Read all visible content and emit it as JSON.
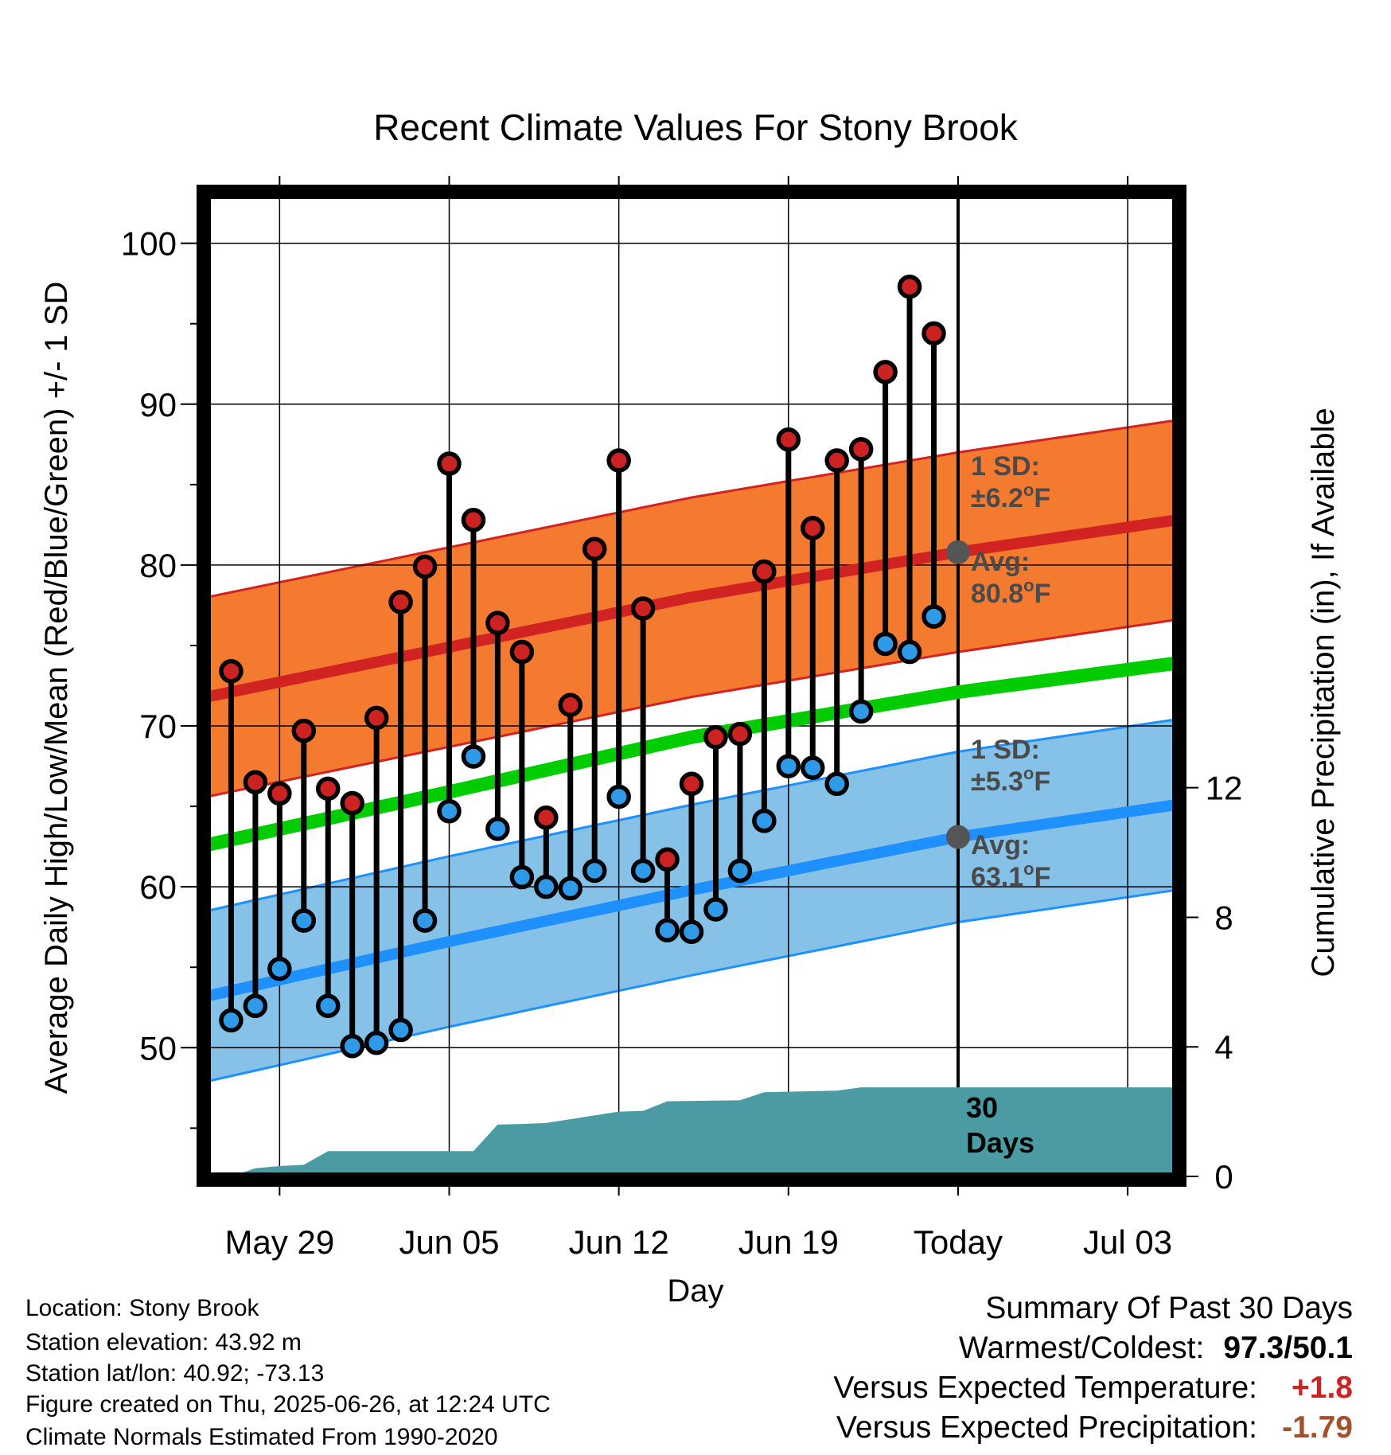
{
  "chart_data": {
    "type": "line",
    "title": "Recent Climate Values For Stony Brook",
    "xlabel": "Day",
    "ylabel": "Average Daily High/Low/Mean (Red/Blue/Green) +/- 1 SD",
    "y2label": "Cumulative Precipitation (in), If Available",
    "x_tick_labels": [
      "May 29",
      "Jun 05",
      "Jun 12",
      "Jun 19",
      "Today",
      "Jul 03"
    ],
    "x_tick_dates": [
      "2025-05-29",
      "2025-06-05",
      "2025-06-12",
      "2025-06-19",
      "2025-06-26",
      "2025-07-03"
    ],
    "x_range": [
      "2025-05-26",
      "2025-07-05"
    ],
    "today": "2025-06-26",
    "ylim": [
      42,
      103
    ],
    "y_ticks": [
      50,
      60,
      70,
      80,
      90,
      100
    ],
    "y2lim": [
      0,
      30.3
    ],
    "y2_ticks": [
      0,
      4,
      8,
      12
    ],
    "grid": true,
    "normals": {
      "dates": [
        "2025-05-26",
        "2025-06-05",
        "2025-06-15",
        "2025-06-26",
        "2025-07-05"
      ],
      "high_avg": [
        71.8,
        74.9,
        78.0,
        80.8,
        82.8
      ],
      "high_sd": 6.2,
      "mean_avg": [
        62.6,
        65.9,
        69.3,
        72.1,
        73.9
      ],
      "low_avg": [
        53.2,
        56.6,
        59.8,
        63.1,
        65.1
      ],
      "low_sd": 5.3
    },
    "daily": {
      "dates": [
        "2025-05-27",
        "2025-05-28",
        "2025-05-29",
        "2025-05-30",
        "2025-05-31",
        "2025-06-01",
        "2025-06-02",
        "2025-06-03",
        "2025-06-04",
        "2025-06-05",
        "2025-06-06",
        "2025-06-07",
        "2025-06-08",
        "2025-06-09",
        "2025-06-10",
        "2025-06-11",
        "2025-06-12",
        "2025-06-13",
        "2025-06-14",
        "2025-06-15",
        "2025-06-16",
        "2025-06-17",
        "2025-06-18",
        "2025-06-19",
        "2025-06-20",
        "2025-06-21",
        "2025-06-22",
        "2025-06-23",
        "2025-06-24",
        "2025-06-25"
      ],
      "high": [
        73.4,
        66.5,
        65.8,
        69.7,
        66.1,
        65.2,
        70.5,
        77.7,
        79.9,
        86.3,
        82.8,
        76.4,
        74.6,
        64.3,
        71.3,
        81.0,
        86.5,
        77.3,
        61.7,
        66.4,
        69.3,
        69.5,
        79.6,
        87.8,
        82.3,
        86.5,
        87.2,
        92.0,
        97.3,
        94.4
      ],
      "low": [
        51.7,
        52.6,
        54.9,
        57.9,
        52.6,
        50.1,
        50.3,
        51.1,
        57.9,
        64.7,
        68.1,
        63.6,
        60.6,
        60.0,
        59.9,
        61.0,
        65.6,
        61.0,
        57.3,
        57.2,
        58.6,
        61.0,
        64.1,
        67.5,
        67.4,
        66.4,
        70.9,
        75.1,
        74.6,
        76.8
      ]
    },
    "precip_cumulative": {
      "dates": [
        "2025-05-26",
        "2025-05-27",
        "2025-05-28",
        "2025-05-29",
        "2025-05-30",
        "2025-05-31",
        "2025-06-06",
        "2025-06-07",
        "2025-06-08",
        "2025-06-09",
        "2025-06-12",
        "2025-06-13",
        "2025-06-14",
        "2025-06-17",
        "2025-06-18",
        "2025-06-21",
        "2025-06-22",
        "2025-06-26",
        "2025-07-05"
      ],
      "values": [
        0.0,
        0.0,
        0.25,
        0.32,
        0.36,
        0.78,
        0.78,
        1.6,
        1.62,
        1.65,
        2.0,
        2.02,
        2.32,
        2.35,
        2.6,
        2.65,
        2.75,
        2.75,
        2.75
      ]
    },
    "annotations": {
      "high_sd_label": "1 SD:",
      "high_sd_value": "±6.2",
      "high_sd_unit": "F",
      "high_avg_label": "Avg:",
      "high_avg_value": "80.8",
      "high_avg_unit": "F",
      "low_sd_label": "1 SD:",
      "low_sd_value": "±5.3",
      "low_sd_unit": "F",
      "low_avg_label": "Avg:",
      "low_avg_value": "63.1",
      "low_avg_unit": "F",
      "degree_symbol": "o",
      "period_line1": "30",
      "period_line2": "Days"
    },
    "colors": {
      "high_band": "#f47a30",
      "high_line": "#d22323",
      "mean_line": "#00cc00",
      "low_band": "#86c1e8",
      "low_line": "#1e90ff",
      "precip_fill": "#4a9ba3",
      "high_marker": "#cc2222",
      "low_marker": "#2f9be8",
      "avg_marker": "#555555"
    }
  },
  "metadata": {
    "location": "Location: Stony Brook",
    "elevation": "Station elevation: 43.92 m",
    "latlon": "Station lat/lon: 40.92; -73.13",
    "created": "Figure created on Thu, 2025-06-26, at 12:24 UTC",
    "normals": "Climate Normals Estimated From 1990-2020"
  },
  "summary": {
    "heading": "Summary Of Past 30 Days",
    "warm_cold_label": "Warmest/Coldest:",
    "warm_cold_value": "97.3/50.1",
    "temp_label": "Versus Expected Temperature:",
    "temp_value": "+1.8",
    "temp_color": "#cc2222",
    "precip_label": "Versus Expected Precipitation:",
    "precip_value": "-1.79",
    "precip_color": "#a0522d"
  }
}
